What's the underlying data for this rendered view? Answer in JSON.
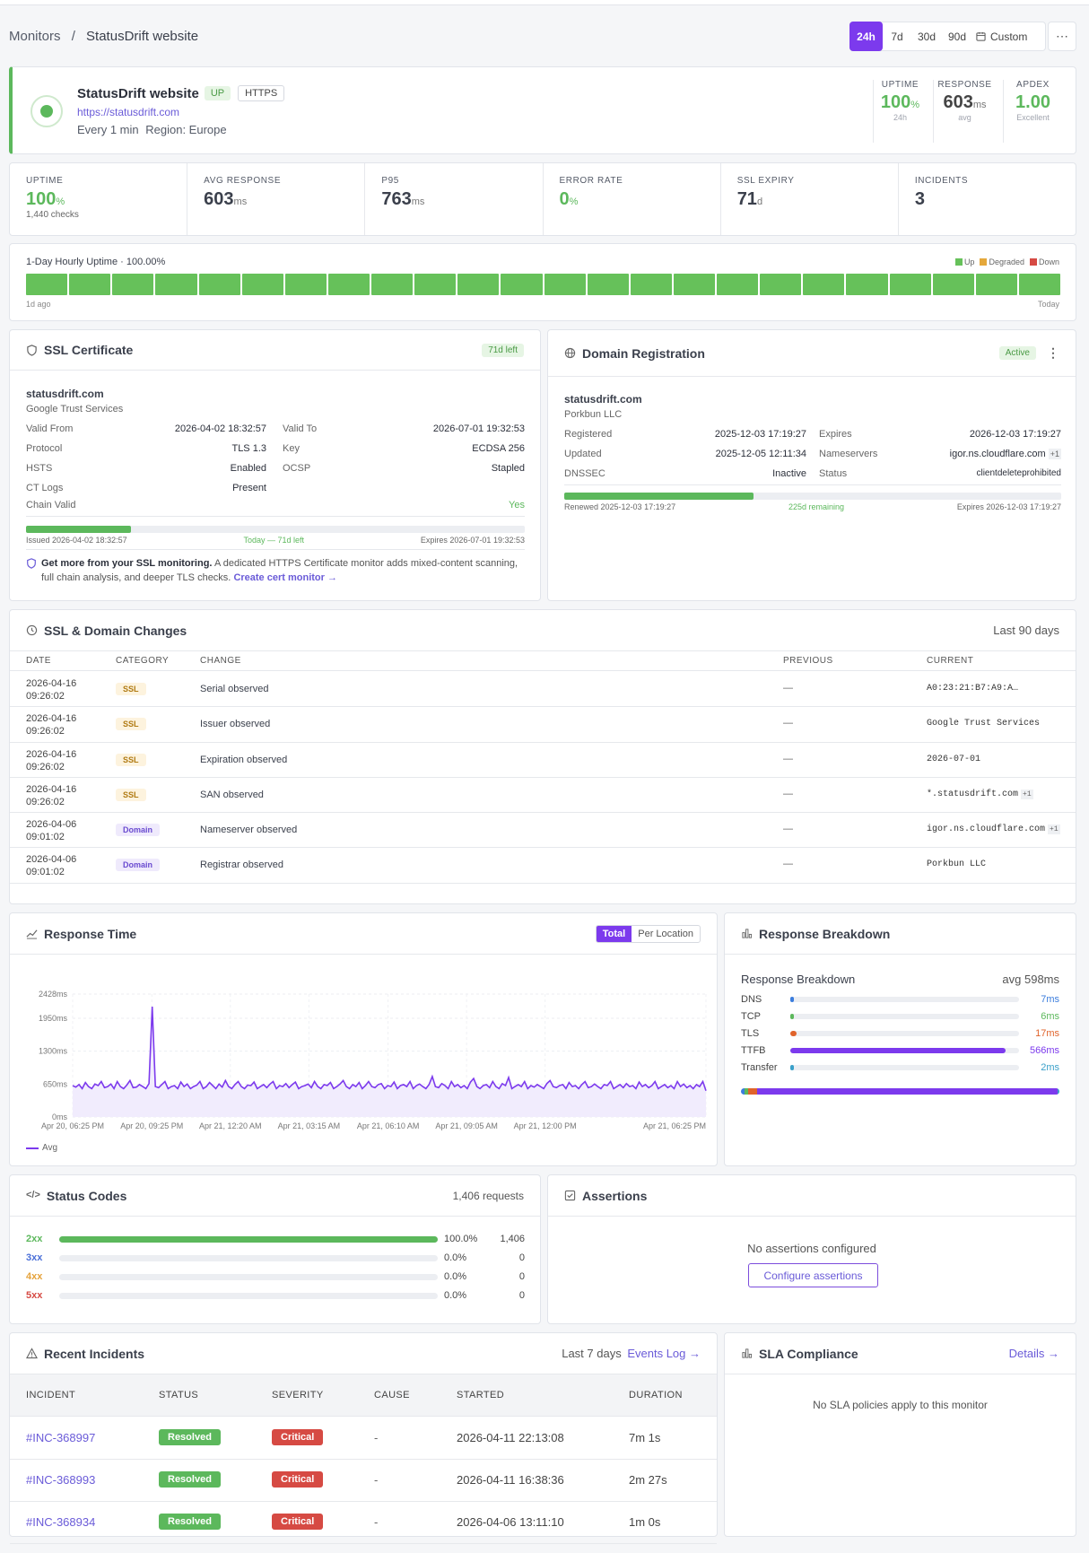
{
  "breadcrumb": {
    "root": "Monitors",
    "sep": "/",
    "current": "StatusDrift website"
  },
  "ranges": {
    "r1": "24h",
    "r2": "7d",
    "r3": "30d",
    "r4": "90d",
    "custom": "Custom",
    "more": "⋯"
  },
  "monitor": {
    "name": "StatusDrift website",
    "status": "UP",
    "protocol": "HTTPS",
    "url": "https://statusdrift.com",
    "interval": "Every 1 min",
    "region": "Region: Europe"
  },
  "header_stats": {
    "uptime_label": "UPTIME",
    "uptime_value": "100",
    "uptime_unit": "%",
    "uptime_sub": "24h",
    "resp_label": "RESPONSE",
    "resp_value": "603",
    "resp_unit": "ms",
    "resp_sub": "avg",
    "apdex_label": "APDEX",
    "apdex_value": "1.00",
    "apdex_sub": "Excellent"
  },
  "kpis": {
    "uptime_label": "UPTIME",
    "uptime_value": "100",
    "uptime_unit": "%",
    "uptime_sub": "1,440 checks",
    "avg_label": "AVG RESPONSE",
    "avg_value": "603",
    "avg_unit": "ms",
    "p95_label": "P95",
    "p95_value": "763",
    "p95_unit": "ms",
    "err_label": "ERROR RATE",
    "err_value": "0",
    "err_unit": "%",
    "ssl_label": "SSL EXPIRY",
    "ssl_value": "71",
    "ssl_unit": "d",
    "inc_label": "INCIDENTS",
    "inc_value": "3"
  },
  "hourly": {
    "title": "1-Day Hourly Uptime · 100.00%",
    "legend_up": "Up",
    "legend_degraded": "Degraded",
    "legend_down": "Down",
    "left": "1d ago",
    "right": "Today",
    "blocks": 24,
    "colors": {
      "up": "#66c15a",
      "degraded": "#e5a83b",
      "down": "#d64a43"
    }
  },
  "ssl": {
    "title": "SSL Certificate",
    "badge": "71d left",
    "domain": "statusdrift.com",
    "issuer": "Google Trust Services",
    "valid_from_k": "Valid From",
    "valid_from_v": "2026-04-02 18:32:57",
    "valid_to_k": "Valid To",
    "valid_to_v": "2026-07-01 19:32:53",
    "protocol_k": "Protocol",
    "protocol_v": "TLS 1.3",
    "key_k": "Key",
    "key_v": "ECDSA 256",
    "hsts_k": "HSTS",
    "hsts_v": "Enabled",
    "ocsp_k": "OCSP",
    "ocsp_v": "Stapled",
    "ct_k": "CT Logs",
    "ct_v": "Present",
    "chain_k": "Chain Valid",
    "chain_v": "Yes",
    "progress": 0.21,
    "issued": "Issued 2026-04-02 18:32:57",
    "today": "Today — 71d left",
    "expires": "Expires 2026-07-01 19:32:53",
    "promo_bold": "Get more from your SSL monitoring.",
    "promo_text": "A dedicated HTTPS Certificate monitor adds mixed-content scanning, full chain analysis, and deeper TLS checks.",
    "promo_link": "Create cert monitor →"
  },
  "domain": {
    "title": "Domain Registration",
    "badge": "Active",
    "name": "statusdrift.com",
    "registrar": "Porkbun LLC",
    "registered_k": "Registered",
    "registered_v": "2025-12-03 17:19:27",
    "expires_k": "Expires",
    "expires_v": "2026-12-03 17:19:27",
    "updated_k": "Updated",
    "updated_v": "2025-12-05 12:11:34",
    "ns_k": "Nameservers",
    "ns_v": "igor.ns.cloudflare.com",
    "ns_more": "+1",
    "dnssec_k": "DNSSEC",
    "dnssec_v": "Inactive",
    "status_k": "Status",
    "status_v": "clientdeleteprohibited",
    "progress": 0.38,
    "renewed": "Renewed 2025-12-03 17:19:27",
    "remaining": "225d remaining",
    "expires_foot": "Expires 2026-12-03 17:19:27"
  },
  "changes": {
    "title": "SSL & Domain Changes",
    "range": "Last 90 days",
    "cols": [
      "DATE",
      "CATEGORY",
      "CHANGE",
      "PREVIOUS",
      "CURRENT"
    ],
    "rows": [
      {
        "date": "2026-04-16",
        "time": "09:26:02",
        "cat": "SSL",
        "change": "Serial observed",
        "prev": "—",
        "cur": "A0:23:21:B7:A9:A…",
        "more": ""
      },
      {
        "date": "2026-04-16",
        "time": "09:26:02",
        "cat": "SSL",
        "change": "Issuer observed",
        "prev": "—",
        "cur": "Google Trust Services",
        "more": ""
      },
      {
        "date": "2026-04-16",
        "time": "09:26:02",
        "cat": "SSL",
        "change": "Expiration observed",
        "prev": "—",
        "cur": "2026-07-01",
        "more": ""
      },
      {
        "date": "2026-04-16",
        "time": "09:26:02",
        "cat": "SSL",
        "change": "SAN observed",
        "prev": "—",
        "cur": "*.statusdrift.com",
        "more": "+1"
      },
      {
        "date": "2026-04-06",
        "time": "09:01:02",
        "cat": "Domain",
        "change": "Nameserver observed",
        "prev": "—",
        "cur": "igor.ns.cloudflare.com",
        "more": "+1"
      },
      {
        "date": "2026-04-06",
        "time": "09:01:02",
        "cat": "Domain",
        "change": "Registrar observed",
        "prev": "—",
        "cur": "Porkbun LLC",
        "more": ""
      }
    ]
  },
  "response_time": {
    "title": "Response Time",
    "tab_total": "Total",
    "tab_loc": "Per Location",
    "legend": "Avg"
  },
  "chart_data": {
    "type": "line",
    "ylim": [
      0,
      2428
    ],
    "yticks": [
      "2428ms",
      "1950ms",
      "1300ms",
      "650ms",
      "0ms"
    ],
    "xticks": [
      "Apr 20, 06:25 PM",
      "Apr 20, 09:25 PM",
      "Apr 21, 12:20 AM",
      "Apr 21, 03:15 AM",
      "Apr 21, 06:10 AM",
      "Apr 21, 09:05 AM",
      "Apr 21, 12:00 PM",
      "Apr 21, 06:25 PM"
    ],
    "series": [
      {
        "name": "Avg",
        "values": [
          620,
          590,
          640,
          560,
          680,
          600,
          560,
          650,
          620,
          700,
          580,
          600,
          650,
          560,
          700,
          600,
          560,
          630,
          720,
          580,
          590,
          640,
          600,
          560,
          660,
          2180,
          600,
          580,
          640,
          700,
          560,
          600,
          620,
          560,
          690,
          600,
          650,
          560,
          600,
          630,
          700,
          560,
          600,
          680,
          620,
          560,
          650,
          590,
          720,
          600,
          560,
          640,
          700,
          600,
          560,
          630,
          620,
          690,
          560,
          600,
          640,
          580,
          650,
          700,
          560,
          620,
          600,
          660,
          580,
          640,
          690,
          560,
          600,
          620,
          650,
          580,
          700,
          600,
          560,
          640,
          620,
          680,
          560,
          600,
          650,
          720,
          600,
          560,
          640,
          600,
          680,
          560,
          620,
          700,
          600,
          580,
          640,
          660,
          560,
          620,
          600,
          690,
          560,
          620,
          640,
          600,
          700,
          560,
          620,
          650,
          600,
          560,
          640,
          800,
          600,
          580,
          660,
          620,
          560,
          700,
          600,
          640,
          580,
          620,
          560,
          690,
          760,
          600,
          560,
          620,
          640,
          580,
          700,
          600,
          560,
          660,
          620,
          780,
          560,
          600,
          640,
          600,
          700,
          560,
          620,
          590,
          640,
          600,
          560,
          660,
          720,
          600,
          580,
          620,
          640,
          560,
          680,
          600,
          620,
          560,
          640,
          700,
          580,
          600,
          650,
          600,
          560,
          640,
          620,
          700,
          560,
          600,
          640,
          580,
          660,
          600,
          620,
          560,
          690,
          600,
          640,
          580,
          620,
          700,
          560,
          600,
          640,
          580,
          620,
          560,
          700,
          600,
          650,
          580,
          620,
          560,
          640,
          600,
          700,
          520
        ]
      }
    ]
  },
  "breakdown": {
    "title": "Response Breakdown",
    "sub": "Response Breakdown",
    "avg": "avg 598ms",
    "items": [
      {
        "k": "DNS",
        "v": "7ms",
        "ms": 7,
        "color": "#3b7ddd"
      },
      {
        "k": "TCP",
        "v": "6ms",
        "ms": 6,
        "color": "#5cb85c"
      },
      {
        "k": "TLS",
        "v": "17ms",
        "ms": 17,
        "color": "#e0632b"
      },
      {
        "k": "TTFB",
        "v": "566ms",
        "ms": 566,
        "color": "#7c3aed"
      },
      {
        "k": "Transfer",
        "v": "2ms",
        "ms": 2,
        "color": "#3aa0c9"
      }
    ]
  },
  "status_codes": {
    "title": "Status Codes",
    "count": "1,406 requests",
    "rows": [
      {
        "k": "2xx",
        "pct": "100.0%",
        "n": "1,406",
        "frac": 1,
        "color": "#5cb85c"
      },
      {
        "k": "3xx",
        "pct": "0.0%",
        "n": "0",
        "frac": 0,
        "color": "#4a6fd8"
      },
      {
        "k": "4xx",
        "pct": "0.0%",
        "n": "0",
        "frac": 0,
        "color": "#e5a23b"
      },
      {
        "k": "5xx",
        "pct": "0.0%",
        "n": "0",
        "frac": 0,
        "color": "#d64a43"
      }
    ]
  },
  "assertions": {
    "title": "Assertions",
    "empty": "No assertions configured",
    "button": "Configure assertions"
  },
  "incidents": {
    "title": "Recent Incidents",
    "range": "Last 7 days",
    "link": "Events Log →",
    "cols": [
      "INCIDENT",
      "STATUS",
      "SEVERITY",
      "CAUSE",
      "STARTED",
      "DURATION"
    ],
    "rows": [
      {
        "id": "#INC-368997",
        "status": "Resolved",
        "sev": "Critical",
        "cause": "-",
        "started": "2026-04-11 22:13:08",
        "dur": "7m 1s"
      },
      {
        "id": "#INC-368993",
        "status": "Resolved",
        "sev": "Critical",
        "cause": "-",
        "started": "2026-04-11 16:38:36",
        "dur": "2m 27s"
      },
      {
        "id": "#INC-368934",
        "status": "Resolved",
        "sev": "Critical",
        "cause": "-",
        "started": "2026-04-06 13:11:10",
        "dur": "1m 0s"
      }
    ]
  },
  "sla": {
    "title": "SLA Compliance",
    "link": "Details →",
    "empty": "No SLA policies apply to this monitor"
  }
}
